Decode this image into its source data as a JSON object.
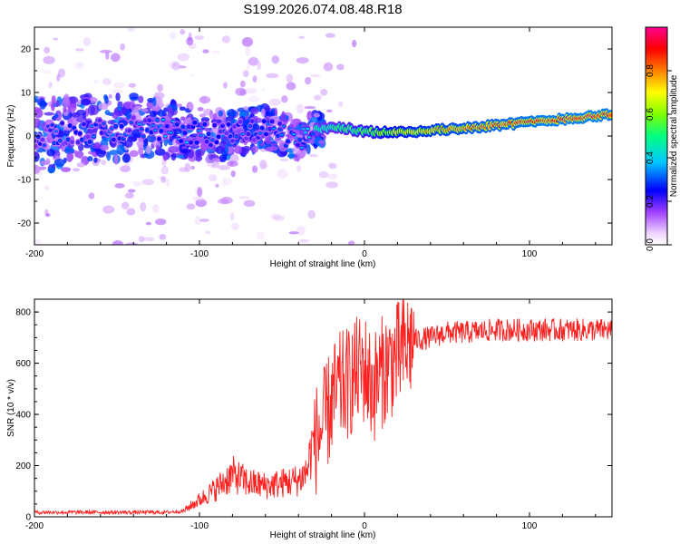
{
  "chart_data": [
    {
      "type": "heatmap",
      "title": "S199.2026.074.08.48.R18",
      "xlabel": "Height of straight line (km)",
      "ylabel": "Frequency (Hz)",
      "xlim": [
        -200,
        150
      ],
      "ylim": [
        -25,
        25
      ],
      "xticks": [
        -200,
        -100,
        0,
        100
      ],
      "yticks": [
        -20,
        -10,
        0,
        10,
        20
      ],
      "colorbar_label": "Normalized spectral amplitude",
      "colorbar_range": [
        0,
        1
      ],
      "colorbar_ticks": [
        0.0,
        0.2,
        0.4,
        0.6,
        0.8
      ],
      "colormap": [
        "#ffffff",
        "#d9b8f0",
        "#9a3ff0",
        "#5a00d8",
        "#0000ff",
        "#00c8ff",
        "#00ff80",
        "#80ff00",
        "#ffff00",
        "#ff8000",
        "#ff0000",
        "#ff0090"
      ],
      "ridge": {
        "description_points": [
          {
            "x": -200,
            "f": 0.0,
            "amp": 0.3
          },
          {
            "x": -170,
            "f": 1.0,
            "amp": 0.35
          },
          {
            "x": -140,
            "f": 2.0,
            "amp": 0.35
          },
          {
            "x": -110,
            "f": 1.0,
            "amp": 0.4
          },
          {
            "x": -90,
            "f": 0.0,
            "amp": 0.35
          },
          {
            "x": -60,
            "f": 2.0,
            "amp": 0.35
          },
          {
            "x": -40,
            "f": -1.0,
            "amp": 0.4
          },
          {
            "x": -30,
            "f": 1.5,
            "amp": 0.5
          },
          {
            "x": -15,
            "f": 2.0,
            "amp": 0.55
          },
          {
            "x": 0,
            "f": 1.0,
            "amp": 0.6
          },
          {
            "x": 20,
            "f": 0.8,
            "amp": 0.75
          },
          {
            "x": 50,
            "f": 1.5,
            "amp": 0.85
          },
          {
            "x": 80,
            "f": 2.5,
            "amp": 0.9
          },
          {
            "x": 110,
            "f": 3.5,
            "amp": 0.95
          },
          {
            "x": 150,
            "f": 5.0,
            "amp": 0.95
          }
        ]
      }
    },
    {
      "type": "line",
      "xlabel": "Height of straight line (km)",
      "ylabel": "SNR (10 * v/v)",
      "xlim": [
        -200,
        150
      ],
      "ylim": [
        0,
        850
      ],
      "xticks": [
        -200,
        -100,
        0,
        100
      ],
      "yticks": [
        0,
        200,
        400,
        600,
        800
      ],
      "color": "#ff2020",
      "series": [
        {
          "name": "SNR",
          "x": [
            -200,
            -180,
            -160,
            -140,
            -120,
            -110,
            -100,
            -90,
            -80,
            -70,
            -60,
            -50,
            -40,
            -35,
            -30,
            -25,
            -20,
            -15,
            -10,
            -5,
            0,
            5,
            10,
            15,
            20,
            25,
            30,
            40,
            50,
            60,
            80,
            100,
            120,
            150
          ],
          "values": [
            15,
            15,
            15,
            15,
            15,
            20,
            60,
            100,
            150,
            120,
            110,
            120,
            130,
            160,
            300,
            350,
            450,
            500,
            520,
            560,
            580,
            500,
            560,
            600,
            620,
            660,
            690,
            700,
            720,
            720,
            730,
            730,
            730,
            730
          ]
        }
      ]
    }
  ]
}
